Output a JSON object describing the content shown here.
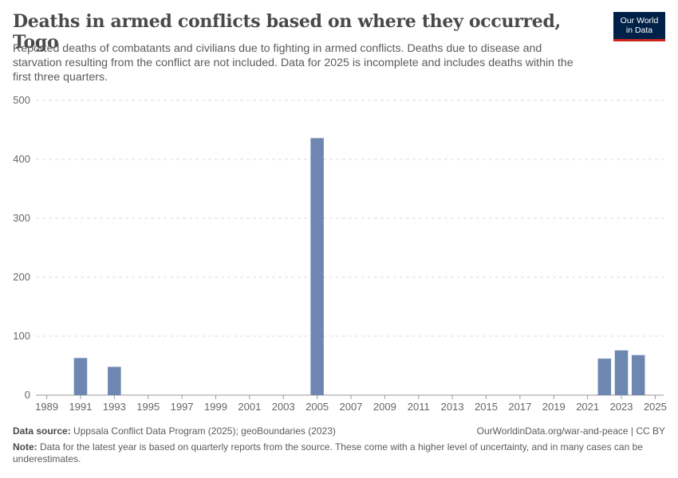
{
  "header": {
    "title": "Deaths in armed conflicts based on where they occurred, Togo",
    "subtitle": "Reported deaths of combatants and civilians due to fighting in armed conflicts. Deaths due to disease and starvation resulting from the conflict are not included. Data for 2025 is incomplete and includes deaths within the first three quarters."
  },
  "logo": {
    "line1": "Our World",
    "line2": "in Data",
    "bg_color": "#002147",
    "accent_color": "#ce261e"
  },
  "chart_data": {
    "type": "bar",
    "title": "Deaths in armed conflicts based on where they occurred, Togo",
    "xlabel": "",
    "ylabel": "",
    "categories": [
      1989,
      1990,
      1991,
      1992,
      1993,
      1994,
      1995,
      1996,
      1997,
      1998,
      1999,
      2000,
      2001,
      2002,
      2003,
      2004,
      2005,
      2006,
      2007,
      2008,
      2009,
      2010,
      2011,
      2012,
      2013,
      2014,
      2015,
      2016,
      2017,
      2018,
      2019,
      2020,
      2021,
      2022,
      2023,
      2024,
      2025
    ],
    "values": [
      0,
      0,
      63,
      0,
      48,
      0,
      0,
      0,
      0,
      0,
      0,
      0,
      0,
      0,
      0,
      0,
      436,
      0,
      0,
      0,
      0,
      0,
      0,
      0,
      0,
      0,
      0,
      0,
      0,
      0,
      0,
      0,
      0,
      62,
      76,
      68,
      0
    ],
    "ylim": [
      0,
      500
    ],
    "yticks": [
      "0",
      "100",
      "200",
      "300",
      "400",
      "500"
    ],
    "xticks": [
      "1989",
      "1991",
      "1993",
      "1995",
      "1997",
      "1999",
      "2001",
      "2003",
      "2005",
      "2007",
      "2009",
      "2011",
      "2013",
      "2015",
      "2017",
      "2019",
      "2021",
      "2023",
      "2025"
    ],
    "bar_color": "#6d87b1",
    "grid": true
  },
  "footer": {
    "source_label": "Data source:",
    "source_text": "Uppsala Conflict Data Program (2025); geoBoundaries (2023)",
    "url": "OurWorldinData.org/war-and-peace | CC BY",
    "note_label": "Note:",
    "note_text": "Data for the latest year is based on quarterly reports from the source. These come with a higher level of uncertainty, and in many cases can be underestimates."
  }
}
